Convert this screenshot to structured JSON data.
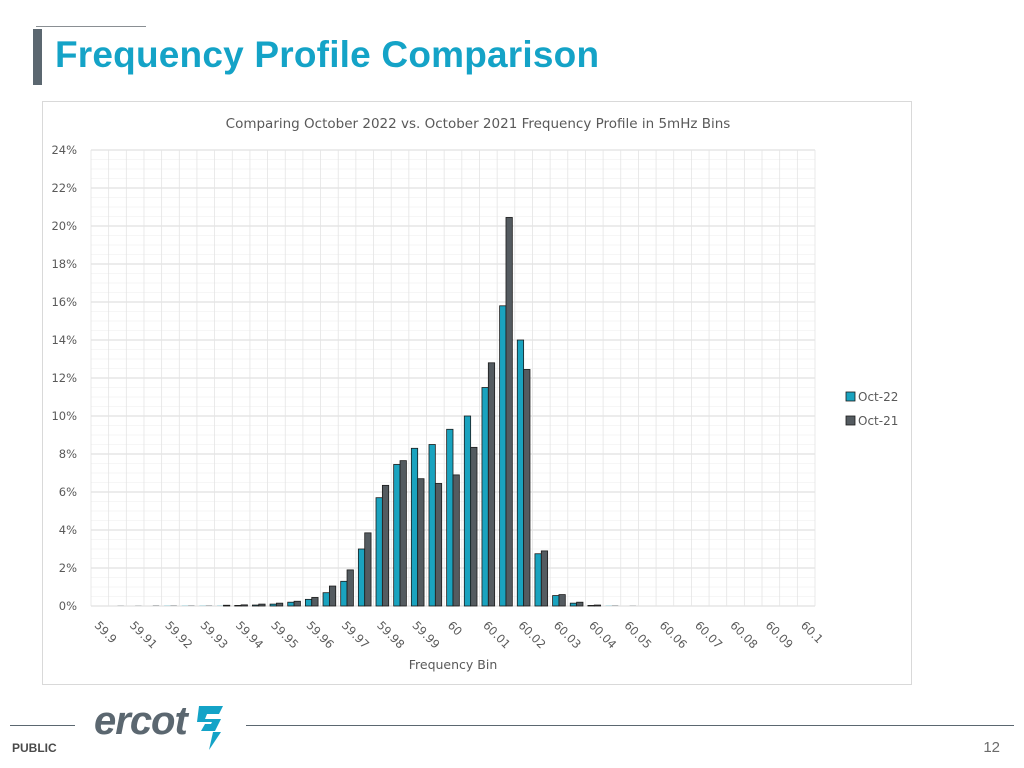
{
  "page": {
    "title": "Frequency Profile Comparison",
    "footer_label": "PUBLIC",
    "page_number": "12",
    "logo_text": "ercot"
  },
  "colors": {
    "title": "#14a3c7",
    "oct22": "#1aa3bf",
    "oct21": "#545b60",
    "grid": "#d9d9d9"
  },
  "chart_data": {
    "type": "bar",
    "title": "Comparing October 2022 vs. October 2021 Frequency Profile in 5mHz Bins",
    "xlabel": "Frequency Bin",
    "ylabel": "",
    "ylim": [
      0,
      24
    ],
    "y_unit": "%",
    "y_ticks": [
      "0%",
      "2%",
      "4%",
      "6%",
      "8%",
      "10%",
      "12%",
      "14%",
      "16%",
      "18%",
      "20%",
      "22%",
      "24%"
    ],
    "categories": [
      "59.9",
      "59.905",
      "59.91",
      "59.915",
      "59.92",
      "59.925",
      "59.93",
      "59.935",
      "59.94",
      "59.945",
      "59.95",
      "59.955",
      "59.96",
      "59.965",
      "59.97",
      "59.975",
      "59.98",
      "59.985",
      "59.99",
      "59.995",
      "60",
      "60.005",
      "60.01",
      "60.015",
      "60.02",
      "60.025",
      "60.03",
      "60.035",
      "60.04",
      "60.045",
      "60.05",
      "60.055",
      "60.06",
      "60.065",
      "60.07",
      "60.075",
      "60.08",
      "60.085",
      "60.09",
      "60.095",
      "60.1"
    ],
    "tick_labels": [
      "59.9",
      "59.91",
      "59.92",
      "59.93",
      "59.94",
      "59.95",
      "59.96",
      "59.97",
      "59.98",
      "59.99",
      "60",
      "60.01",
      "60.02",
      "60.03",
      "60.04",
      "60.05",
      "60.06",
      "60.07",
      "60.08",
      "60.09",
      "60.1"
    ],
    "series": [
      {
        "name": "Oct-22",
        "color": "#1aa3bf",
        "values": [
          0,
          0,
          0,
          0,
          0.01,
          0.01,
          0.01,
          0.01,
          0.03,
          0.05,
          0.1,
          0.2,
          0.35,
          0.7,
          1.3,
          3.0,
          5.7,
          7.45,
          8.3,
          8.5,
          9.3,
          10.0,
          11.5,
          15.8,
          14.0,
          2.75,
          0.55,
          0.15,
          0.03,
          0.01,
          0,
          0,
          0,
          0,
          0,
          0,
          0,
          0,
          0,
          0,
          0
        ]
      },
      {
        "name": "Oct-21",
        "color": "#545b60",
        "values": [
          0,
          0.01,
          0.01,
          0.02,
          0.02,
          0.02,
          0.02,
          0.04,
          0.06,
          0.1,
          0.15,
          0.25,
          0.45,
          1.05,
          1.9,
          3.85,
          6.35,
          7.65,
          6.7,
          6.45,
          6.9,
          8.35,
          12.8,
          20.45,
          12.45,
          2.9,
          0.6,
          0.2,
          0.05,
          0.02,
          0.01,
          0,
          0,
          0,
          0,
          0,
          0,
          0,
          0,
          0,
          0
        ]
      }
    ],
    "legend_position": "right",
    "grid": true
  }
}
